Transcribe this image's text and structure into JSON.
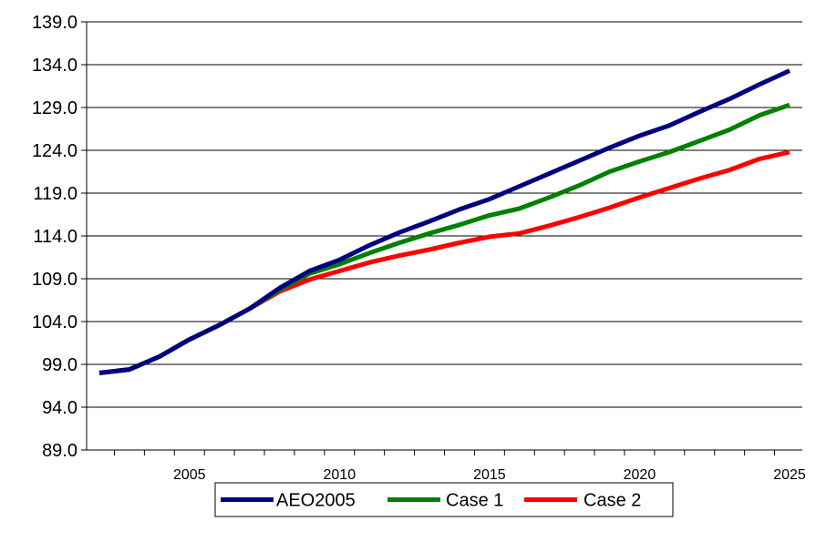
{
  "chart_data": {
    "type": "line",
    "title": "",
    "xlabel": "",
    "ylabel": "",
    "ylim": [
      89.0,
      139.0
    ],
    "xlim": [
      2002,
      2025
    ],
    "yticks": [
      "89.0",
      "94.0",
      "99.0",
      "104.0",
      "109.0",
      "114.0",
      "119.0",
      "124.0",
      "129.0",
      "134.0",
      "139.0"
    ],
    "xticks": [
      "2005",
      "2010",
      "2015",
      "2020",
      "2025"
    ],
    "grid": "horizontal",
    "legend_position": "bottom",
    "x": [
      2002,
      2003,
      2004,
      2005,
      2006,
      2007,
      2008,
      2009,
      2010,
      2011,
      2012,
      2013,
      2014,
      2015,
      2016,
      2017,
      2018,
      2019,
      2020,
      2021,
      2022,
      2023,
      2024,
      2025
    ],
    "series": [
      {
        "name": "AEO2005",
        "color": "#000080",
        "values": [
          98.0,
          98.4,
          99.9,
          101.9,
          103.6,
          105.5,
          107.9,
          109.9,
          111.2,
          112.9,
          114.4,
          115.7,
          117.1,
          118.3,
          119.8,
          121.3,
          122.8,
          124.3,
          125.7,
          126.9,
          128.5,
          130.0,
          131.7,
          133.3
        ]
      },
      {
        "name": "Case 1",
        "color": "#008000",
        "values": [
          98.0,
          98.4,
          99.9,
          101.9,
          103.6,
          105.5,
          107.7,
          109.6,
          110.7,
          112.0,
          113.2,
          114.3,
          115.3,
          116.4,
          117.2,
          118.5,
          119.9,
          121.5,
          122.7,
          123.8,
          125.1,
          126.4,
          128.1,
          129.3
        ]
      },
      {
        "name": "Case 2",
        "color": "#ff0000",
        "values": [
          98.0,
          98.4,
          99.9,
          101.9,
          103.6,
          105.5,
          107.5,
          108.9,
          109.9,
          110.9,
          111.7,
          112.4,
          113.2,
          113.9,
          114.3,
          115.2,
          116.2,
          117.3,
          118.5,
          119.6,
          120.7,
          121.7,
          123.0,
          123.8
        ]
      }
    ]
  }
}
